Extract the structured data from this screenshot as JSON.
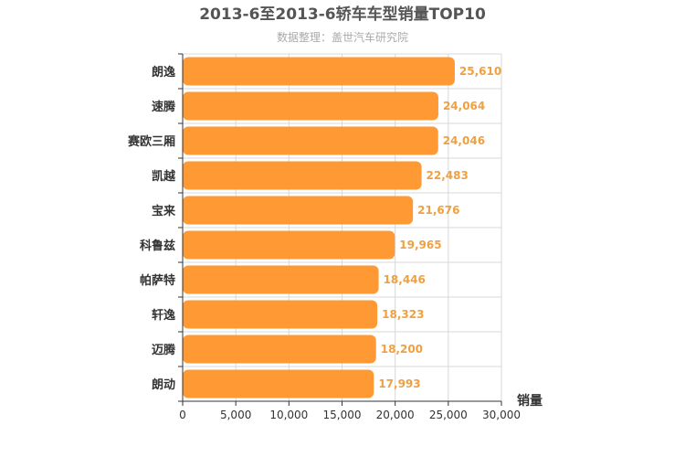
{
  "chart_data": {
    "type": "bar",
    "orientation": "horizontal",
    "title": "2013-6至2013-6轿车车型销量TOP10",
    "subtitle": "数据整理：盖世汽车研究院",
    "categories": [
      "朗逸",
      "速腾",
      "赛欧三厢",
      "凯越",
      "宝来",
      "科鲁兹",
      "帕萨特",
      "轩逸",
      "迈腾",
      "朗动"
    ],
    "values": [
      25610,
      24064,
      24046,
      22483,
      21676,
      19965,
      18446,
      18323,
      18200,
      17993
    ],
    "value_labels": [
      "25,610",
      "24,064",
      "24,046",
      "22,483",
      "21,676",
      "19,965",
      "18,446",
      "18,323",
      "18,200",
      "17,993"
    ],
    "xlabel": "销量",
    "ylabel": "",
    "xlim": [
      0,
      30000
    ],
    "x_ticks": [
      0,
      5000,
      10000,
      15000,
      20000,
      25000,
      30000
    ],
    "x_tick_labels": [
      "0",
      "5,000",
      "10,000",
      "15,000",
      "20,000",
      "25,000",
      "30,000"
    ],
    "grid": true,
    "bar_color": "#ff9933",
    "label_color": "#f0a040"
  }
}
